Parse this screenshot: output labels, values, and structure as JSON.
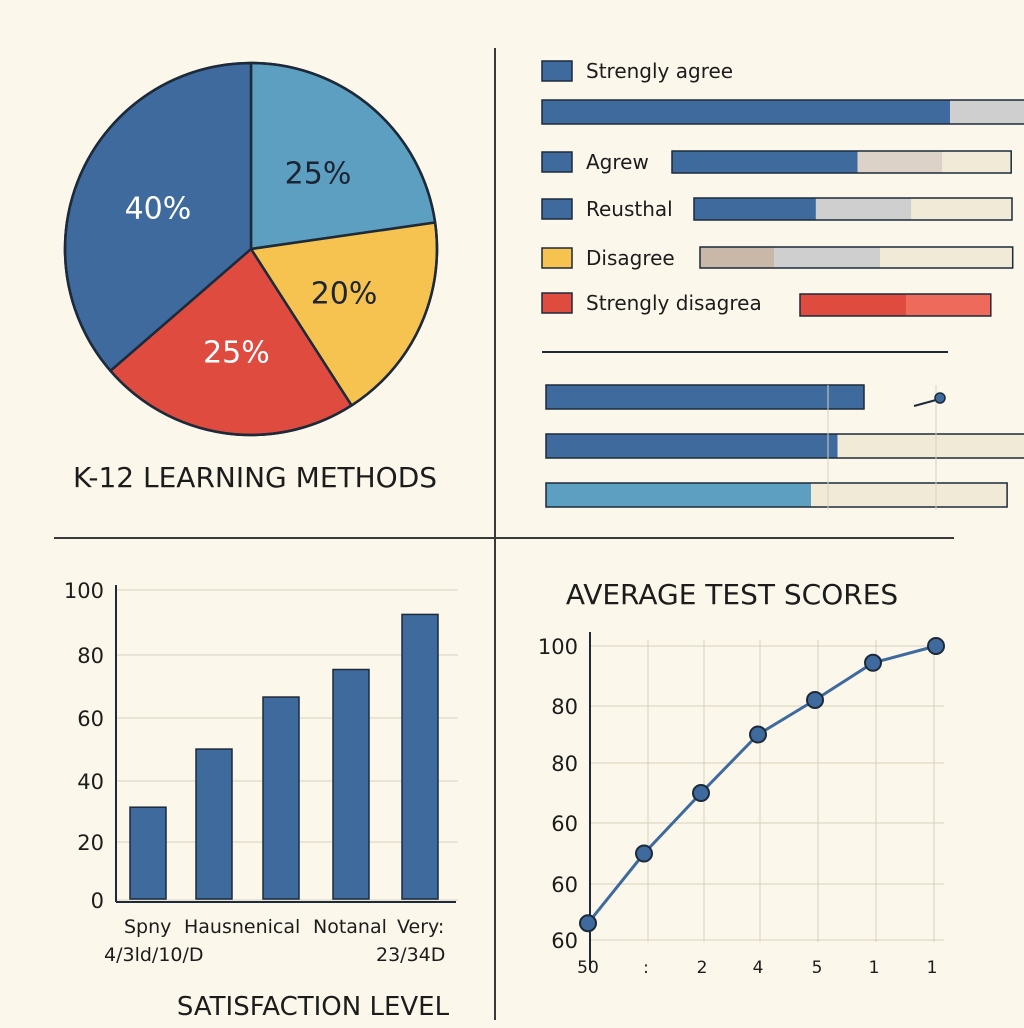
{
  "colors": {
    "background": "#fbf7ea",
    "blue_dark": "#3e6a9e",
    "blue_light": "#5c9fc0",
    "yellow": "#f6c250",
    "red": "#df4b3e",
    "red_light": "#ee6a5a",
    "tan": "#c9b8a8",
    "gray": "#cfcfcf",
    "cream": "#f0ead7",
    "outline": "#1d2a3a"
  },
  "chart_data": [
    {
      "type": "pie",
      "title": "K-12 LEARNING METHODS",
      "slices": [
        {
          "label": "25%",
          "value": 25,
          "color": "#5c9fc0"
        },
        {
          "label": "20%",
          "value": 20,
          "color": "#f6c250"
        },
        {
          "label": "25%",
          "value": 25,
          "color": "#df4b3e"
        },
        {
          "label": "40%",
          "value": 40,
          "color": "#3e6a9e"
        }
      ]
    },
    {
      "type": "bar",
      "orientation": "horizontal",
      "stacked": true,
      "legend": [
        {
          "label": "Strengly agree",
          "color": "#3e6a9e"
        },
        {
          "label": "Agrew",
          "color": "#3e6a9e"
        },
        {
          "label": "Reusthal",
          "color": "#3e6a9e"
        },
        {
          "label": "Disagree",
          "color": "#f6c250"
        },
        {
          "label": "Strengly disagrea",
          "color": "#df4b3e"
        }
      ],
      "rows": [
        {
          "segments": [
            {
              "value": 77,
              "color": "#3e6a9e"
            },
            {
              "value": 18,
              "color": "#cfcfcf"
            }
          ]
        },
        {
          "segments": [
            {
              "value": 35,
              "color": "#3e6a9e"
            },
            {
              "value": 16,
              "color": "#ddd2c8"
            },
            {
              "value": 13,
              "color": "#f0ead7"
            }
          ]
        },
        {
          "segments": [
            {
              "value": 23,
              "color": "#3e6a9e"
            },
            {
              "value": 18,
              "color": "#cfcfcf"
            },
            {
              "value": 19,
              "color": "#f0ead7"
            }
          ]
        },
        {
          "segments": [
            {
              "value": 14,
              "color": "#c9b8a8"
            },
            {
              "value": 20,
              "color": "#cfcfcf"
            },
            {
              "value": 25,
              "color": "#f0ead7"
            }
          ]
        },
        {
          "segments": [
            {
              "value": 20,
              "color": "#df4b3e"
            },
            {
              "value": 16,
              "color": "#ee6a5a"
            }
          ]
        },
        {
          "segments": [
            {
              "value": 60,
              "color": "#3e6a9e"
            },
            {
              "value": 0,
              "color": "#f0ead7"
            }
          ]
        },
        {
          "segments": [
            {
              "value": 55,
              "color": "#3e6a9e"
            },
            {
              "value": 42,
              "color": "#f0ead7"
            }
          ]
        },
        {
          "segments": [
            {
              "value": 50,
              "color": "#5c9fc0"
            },
            {
              "value": 37,
              "color": "#f0ead7"
            }
          ]
        }
      ]
    },
    {
      "type": "bar",
      "title": "SATISFACTION LEVEL",
      "categories": [
        "Spny",
        "Hausnenical",
        "Notanal",
        "Very:",
        ""
      ],
      "sub_labels": [
        "4/3ld/10/D",
        "23/34D"
      ],
      "values": [
        30,
        49,
        66,
        75,
        93
      ],
      "yticks": [
        "100",
        "80",
        "60",
        "40",
        "20",
        "0"
      ],
      "ylim": [
        0,
        100
      ],
      "color": "#3e6a9e",
      "grid": true
    },
    {
      "type": "line",
      "title": "AVERAGE TEST SCORES",
      "xticks": [
        "50",
        ":",
        "2",
        "4",
        "5",
        "1",
        "1"
      ],
      "yticks": [
        "100",
        "80",
        "80",
        "60",
        "60",
        "60"
      ],
      "y_positions": [
        0.3,
        1.5,
        2.5,
        3.5,
        4.1,
        4.72,
        5.45
      ],
      "color": "#3e6a9e",
      "grid": true
    }
  ]
}
